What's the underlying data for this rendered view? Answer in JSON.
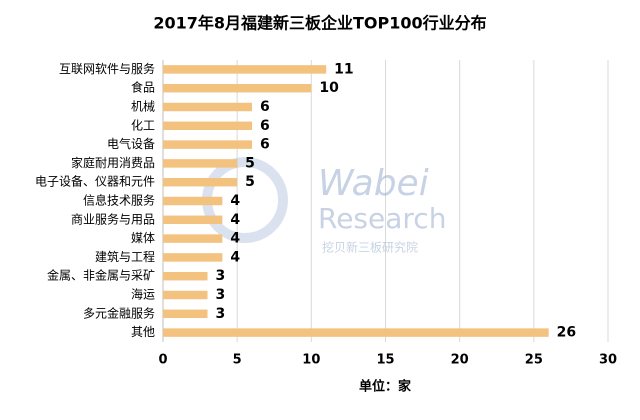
{
  "chart_data": {
    "type": "bar",
    "orientation": "horizontal",
    "title": "2017年8月福建新三板企业TOP100行业分布",
    "categories": [
      "互联网软件与服务",
      "食品",
      "机械",
      "化工",
      "电气设备",
      "家庭耐用消费品",
      "电子设备、仪器和元件",
      "信息技术服务",
      "商业服务与用品",
      "媒体",
      "建筑与工程",
      "金属、非金属与采矿",
      "海运",
      "多元金融服务",
      "其他"
    ],
    "values": [
      11,
      10,
      6,
      6,
      6,
      5,
      5,
      4,
      4,
      4,
      4,
      3,
      3,
      3,
      26
    ],
    "color": "#f2c27e",
    "xlim": [
      0,
      30
    ],
    "xticks": [
      0,
      5,
      10,
      15,
      20,
      25,
      30
    ],
    "grid": true,
    "x_label": "单位：家",
    "watermark": {
      "brand": "Wabei",
      "brand2": "Research",
      "org": "挖贝新三板研究院"
    }
  }
}
